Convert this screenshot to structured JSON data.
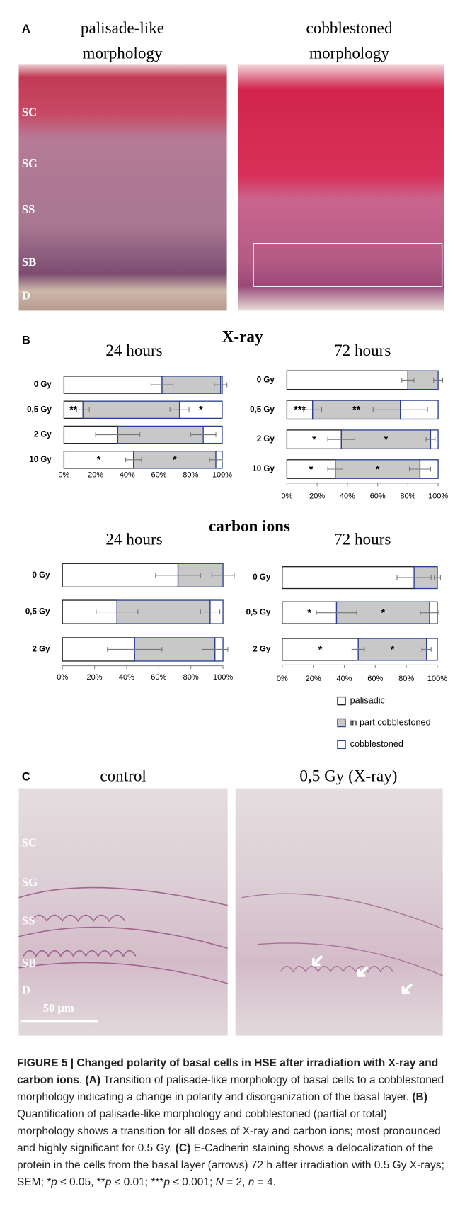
{
  "panel_a": {
    "label": "A",
    "titles": [
      [
        "palisade-like",
        "morphology"
      ],
      [
        "cobblestoned",
        "morphology"
      ]
    ],
    "layers": [
      "SC",
      "SG",
      "SS",
      "SB",
      "D"
    ]
  },
  "panel_b": {
    "label": "B",
    "groups": [
      "X-ray",
      "carbon ions"
    ]
  },
  "chart_data": [
    {
      "type": "bar",
      "orientation": "horizontal",
      "stacked": true,
      "title": "24 hours",
      "categories": [
        "0 Gy",
        "0,5 Gy",
        "2 Gy",
        "10 Gy"
      ],
      "series": [
        {
          "name": "palisadic",
          "color": "#ffffff",
          "edge": "#222222",
          "values": [
            62,
            12,
            34,
            44
          ],
          "errors": [
            7,
            4,
            14,
            5
          ],
          "markers": [
            null,
            "**",
            null,
            "*"
          ]
        },
        {
          "name": "in part cobblestoned",
          "color": "#c8c8c8",
          "edge": "#2a3f8f",
          "values": [
            37,
            61,
            54,
            52
          ],
          "errors": [
            4,
            6,
            8,
            4
          ],
          "markers": [
            null,
            null,
            null,
            "*"
          ]
        },
        {
          "name": "cobblestoned",
          "color": "#ffffff",
          "edge": "#2a3f8f",
          "values": [
            1,
            27,
            12,
            4
          ],
          "markers": [
            null,
            "*",
            null,
            null
          ]
        }
      ],
      "xlim": [
        0,
        100
      ],
      "xticks": [
        {
          "value": 0,
          "label": "0%"
        },
        {
          "value": 20,
          "label": "20%"
        },
        {
          "value": 40,
          "label": "40%"
        },
        {
          "value": 60,
          "label": "60%"
        },
        {
          "value": 80,
          "label": "80%"
        },
        {
          "value": 100,
          "label": "100%"
        }
      ]
    },
    {
      "type": "bar",
      "orientation": "horizontal",
      "stacked": true,
      "title": "72 hours",
      "categories": [
        "0 Gy",
        "0,5 Gy",
        "2 Gy",
        "10 Gy"
      ],
      "series": [
        {
          "name": "palisadic",
          "color": "#ffffff",
          "edge": "#222222",
          "values": [
            80,
            17,
            36,
            32
          ],
          "errors": [
            4,
            6,
            9,
            5
          ],
          "markers": [
            null,
            "***",
            "*",
            "*"
          ]
        },
        {
          "name": "in part cobblestoned",
          "color": "#c8c8c8",
          "edge": "#2a3f8f",
          "values": [
            20,
            58,
            59,
            56
          ],
          "errors": [
            3,
            18,
            3,
            7
          ],
          "markers": [
            null,
            "**",
            "*",
            "*"
          ]
        },
        {
          "name": "cobblestoned",
          "color": "#ffffff",
          "edge": "#2a3f8f",
          "values": [
            0,
            25,
            5,
            12
          ]
        }
      ],
      "xlim": [
        0,
        100
      ],
      "xticks": [
        {
          "value": 0,
          "label": "0%"
        },
        {
          "value": 20,
          "label": "20%"
        },
        {
          "value": 40,
          "label": "40%"
        },
        {
          "value": 60,
          "label": "60%"
        },
        {
          "value": 80,
          "label": "80%"
        },
        {
          "value": 100,
          "label": "100%"
        }
      ]
    },
    {
      "type": "bar",
      "orientation": "horizontal",
      "stacked": true,
      "title": "24 hours",
      "categories": [
        "0 Gy",
        "0,5 Gy",
        "2 Gy"
      ],
      "series": [
        {
          "name": "palisadic",
          "color": "#ffffff",
          "edge": "#222222",
          "values": [
            72,
            34,
            45
          ],
          "errors": [
            14,
            13,
            17
          ]
        },
        {
          "name": "in part cobblestoned",
          "color": "#c8c8c8",
          "edge": "#2a3f8f",
          "values": [
            28,
            58,
            50
          ],
          "errors": [
            7,
            6,
            8
          ]
        },
        {
          "name": "cobblestoned",
          "color": "#ffffff",
          "edge": "#2a3f8f",
          "values": [
            0,
            8,
            5
          ]
        }
      ],
      "xlim": [
        0,
        100
      ],
      "xticks": [
        {
          "value": 0,
          "label": "0%"
        },
        {
          "value": 20,
          "label": "20%"
        },
        {
          "value": 40,
          "label": "40%"
        },
        {
          "value": 60,
          "label": "60%"
        },
        {
          "value": 80,
          "label": "80%"
        },
        {
          "value": 100,
          "label": "100%"
        }
      ]
    },
    {
      "type": "bar",
      "orientation": "horizontal",
      "stacked": true,
      "title": "72 hours",
      "categories": [
        "0 Gy",
        "0,5 Gy",
        "2 Gy"
      ],
      "series": [
        {
          "name": "palisadic",
          "color": "#ffffff",
          "edge": "#222222",
          "values": [
            85,
            35,
            49
          ],
          "errors": [
            11,
            13,
            4
          ],
          "markers": [
            null,
            "*",
            "*"
          ]
        },
        {
          "name": "in part cobblestoned",
          "color": "#c8c8c8",
          "edge": "#2a3f8f",
          "values": [
            15,
            60,
            44
          ],
          "errors": [
            2,
            6,
            3
          ],
          "markers": [
            null,
            "*",
            "*"
          ]
        },
        {
          "name": "cobblestoned",
          "color": "#ffffff",
          "edge": "#2a3f8f",
          "values": [
            0,
            5,
            7
          ]
        }
      ],
      "xlim": [
        0,
        100
      ],
      "xticks": [
        {
          "value": 0,
          "label": "0%"
        },
        {
          "value": 20,
          "label": "20%"
        },
        {
          "value": 40,
          "label": "40%"
        },
        {
          "value": 60,
          "label": "60%"
        },
        {
          "value": 80,
          "label": "80%"
        },
        {
          "value": 100,
          "label": "100%"
        }
      ]
    }
  ],
  "panel_c": {
    "label": "C",
    "titles": [
      "control",
      "0,5 Gy (X-ray)"
    ],
    "layers": [
      "SC",
      "SG",
      "SS",
      "SB",
      "D"
    ],
    "scale_bar": "50 µm"
  },
  "caption": {
    "runs": [
      {
        "text": "FIGURE 5 | Changed polarity of basal cells in HSE after irradiation with X-ray and carbon ions",
        "bold": true
      },
      {
        "text": ". "
      },
      {
        "text": "(A)",
        "bold": true
      },
      {
        "text": " Transition of palisade-like morphology of basal cells to a cobblestoned morphology indicating a change in polarity and disorganization of the basal layer. "
      },
      {
        "text": "(B)",
        "bold": true
      },
      {
        "text": " Quantification of palisade-like morphology and cobblestoned (partial or total) morphology shows a transition for all doses of X-ray and carbon ions; most pronounced and highly significant for 0.5 Gy. "
      },
      {
        "text": "(C)",
        "bold": true
      },
      {
        "text": " E-Cadherin staining shows a delocalization of the protein in the cells from the basal layer (arrows) 72 h after irradiation with 0.5 Gy X-rays; SEM; *"
      },
      {
        "text": "p",
        "italic": true
      },
      {
        "text": " ≤ 0.05, **"
      },
      {
        "text": "p",
        "italic": true
      },
      {
        "text": " ≤ 0.01; ***"
      },
      {
        "text": "p",
        "italic": true
      },
      {
        "text": " ≤ 0.001; "
      },
      {
        "text": "N",
        "italic": true
      },
      {
        "text": " = 2, "
      },
      {
        "text": "n",
        "italic": true
      },
      {
        "text": " = 4."
      }
    ]
  }
}
